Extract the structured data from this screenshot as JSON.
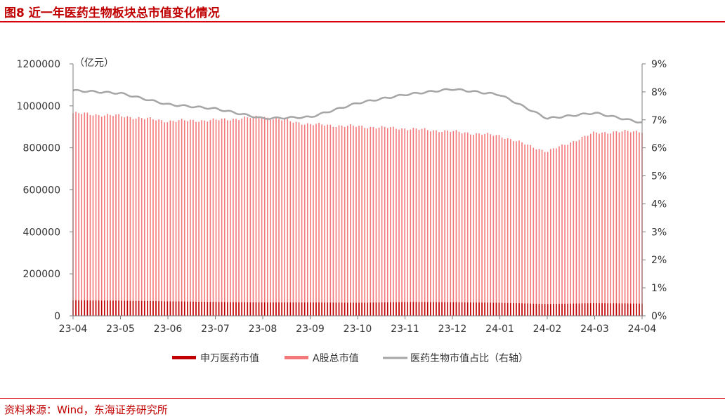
{
  "figure": {
    "title": "图8  近一年医药生物板块总市值变化情况",
    "source": "资料来源：Wind，东海证券研究所"
  },
  "colors": {
    "accent": "#c00000",
    "rule": "#d9000e",
    "sw_bar": "#c00000",
    "a_bar": "#f3787a",
    "ratio_line": "#a6a6a6"
  },
  "chart_data": {
    "type": "bar",
    "unit_label": "（亿元）",
    "x_tick_labels": [
      "23-04",
      "23-05",
      "23-06",
      "23-07",
      "23-08",
      "23-09",
      "23-10",
      "23-11",
      "23-12",
      "24-01",
      "24-02",
      "24-03",
      "24-04"
    ],
    "y_left": {
      "min": 0,
      "max": 1200000,
      "ticks": [
        "0",
        "200000",
        "400000",
        "600000",
        "800000",
        "1000000",
        "1200000"
      ]
    },
    "y_right": {
      "min": 0,
      "max": 9,
      "ticks": [
        "0%",
        "1%",
        "2%",
        "3%",
        "4%",
        "5%",
        "6%",
        "7%",
        "8%",
        "9%"
      ]
    },
    "grid": false,
    "legend_position": "bottom",
    "series": [
      {
        "name": "申万医药市值",
        "kind": "bar",
        "axis": "left",
        "month_values": [
          74000,
          72000,
          69000,
          66000,
          64000,
          64000,
          62000,
          66000,
          65000,
          62000,
          56000,
          60000,
          58000
        ]
      },
      {
        "name": "A股总市值",
        "kind": "bar",
        "axis": "left",
        "month_values": [
          965000,
          952000,
          928000,
          932000,
          948000,
          912000,
          902000,
          892000,
          878000,
          858000,
          782000,
          872000,
          880000
        ]
      },
      {
        "name": "医药生物市值占比（右轴）",
        "kind": "line",
        "axis": "right",
        "month_values": [
          8.05,
          7.95,
          7.55,
          7.4,
          7.05,
          7.1,
          7.6,
          7.9,
          8.1,
          7.9,
          7.05,
          7.25,
          6.9
        ]
      }
    ]
  },
  "legend": {
    "sw": "申万医药市值",
    "a": "A股总市值",
    "ratio": "医药生物市值占比（右轴）"
  }
}
